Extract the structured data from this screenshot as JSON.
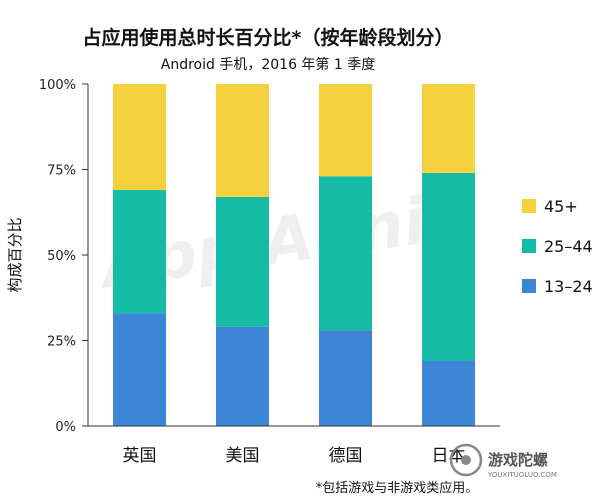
{
  "chart_data": {
    "type": "bar",
    "stacked": true,
    "percent": true,
    "title": "占应用使用总时长百分比*（按年龄段划分）",
    "subtitle": "Android 手机，2016 年第 1 季度",
    "xlabel": "",
    "ylabel": "构成百分比",
    "ylim": [
      0,
      100
    ],
    "yticks": [
      "0%",
      "25%",
      "50%",
      "75%",
      "100%"
    ],
    "categories": [
      "英国",
      "美国",
      "德国",
      "日本"
    ],
    "series": [
      {
        "name": "13–24",
        "color": "#3d85d6",
        "values": [
          33,
          29,
          28,
          19
        ]
      },
      {
        "name": "25–44",
        "color": "#15bba4",
        "values": [
          36,
          38,
          45,
          55
        ]
      },
      {
        "name": "45+",
        "color": "#f6d13f",
        "values": [
          31,
          33,
          27,
          26
        ]
      }
    ],
    "legend": {
      "position": "right",
      "order": [
        "45+",
        "25–44",
        "13–24"
      ]
    },
    "grid": false,
    "footnote": "*包括游戏与非游戏类应用。"
  },
  "watermark": "App Annie",
  "brand": {
    "name": "游戏陀螺",
    "url": "YOUXITUOLUO.COM"
  }
}
